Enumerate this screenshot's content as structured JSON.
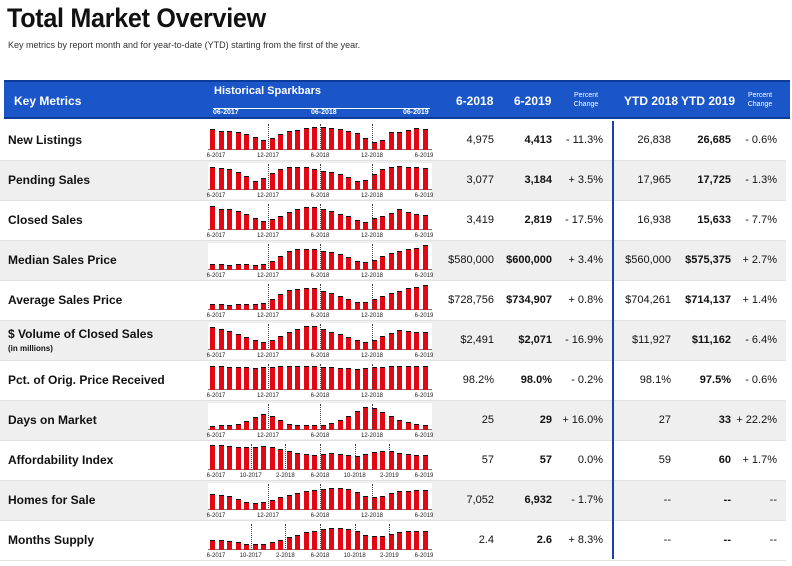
{
  "title": "Total Market Overview",
  "subtitle": "Key metrics by report month and for year-to-date (YTD) starting from the first of the year.",
  "header": {
    "key_metrics": "Key Metrics",
    "sparkbars": "Historical Sparkbars",
    "spark_dates": [
      "06-2017",
      "06-2018",
      "06-2019"
    ],
    "col_6_2018": "6-2018",
    "col_6_2019": "6-2019",
    "percent_change": "Percent Change",
    "ytd_2018": "YTD 2018",
    "ytd_2019": "YTD 2019"
  },
  "colors": {
    "header_bg": "#1a56c8",
    "bar": "#e30613",
    "divider": "#1a3fb0"
  },
  "rows": [
    {
      "metric": "New Listings",
      "sub": "",
      "v2018": "4,975",
      "v2019": "4,413",
      "pct": "- 11.3%",
      "ytd2018": "26,838",
      "ytd2019": "26,685",
      "ytdpct": "- 0.6%",
      "tick_labels": [
        "6-2017",
        "12-2017",
        "6-2018",
        "12-2018",
        "6-2019"
      ],
      "spark": [
        0.8,
        0.75,
        0.72,
        0.7,
        0.62,
        0.5,
        0.4,
        0.45,
        0.6,
        0.72,
        0.78,
        0.85,
        0.88,
        0.88,
        0.85,
        0.82,
        0.75,
        0.65,
        0.45,
        0.3,
        0.4,
        0.68,
        0.7,
        0.78,
        0.85,
        0.8
      ]
    },
    {
      "metric": "Pending Sales",
      "sub": "",
      "v2018": "3,077",
      "v2019": "3,184",
      "pct": "+ 3.5%",
      "ytd2018": "17,965",
      "ytd2019": "17,725",
      "ytdpct": "- 1.3%",
      "tick_labels": [
        "6-2017",
        "12-2017",
        "6-2018",
        "12-2018",
        "6-2019"
      ],
      "spark": [
        0.88,
        0.85,
        0.8,
        0.7,
        0.55,
        0.35,
        0.45,
        0.65,
        0.82,
        0.9,
        0.9,
        0.88,
        0.82,
        0.72,
        0.7,
        0.62,
        0.5,
        0.35,
        0.4,
        0.6,
        0.8,
        0.9,
        0.92,
        0.9,
        0.88,
        0.86
      ]
    },
    {
      "metric": "Closed Sales",
      "sub": "",
      "v2018": "3,419",
      "v2019": "2,819",
      "pct": "- 17.5%",
      "ytd2018": "16,938",
      "ytd2019": "15,633",
      "ytdpct": "- 7.7%",
      "tick_labels": [
        "6-2017",
        "12-2017",
        "6-2018",
        "12-2018",
        "6-2019"
      ],
      "spark": [
        0.92,
        0.82,
        0.8,
        0.72,
        0.6,
        0.48,
        0.35,
        0.42,
        0.55,
        0.7,
        0.8,
        0.9,
        0.9,
        0.82,
        0.72,
        0.62,
        0.52,
        0.4,
        0.3,
        0.45,
        0.55,
        0.65,
        0.8,
        0.7,
        0.6,
        0.58
      ]
    },
    {
      "metric": "Median Sales Price",
      "sub": "",
      "v2018": "$580,000",
      "v2019": "$600,000",
      "pct": "+ 3.4%",
      "ytd2018": "$560,000",
      "ytd2019": "$575,375",
      "ytdpct": "+ 2.7%",
      "tick_labels": [
        "6-2017",
        "12-2017",
        "6-2018",
        "12-2018",
        "6-2019"
      ],
      "spark": [
        0.25,
        0.22,
        0.2,
        0.22,
        0.25,
        0.2,
        0.22,
        0.35,
        0.55,
        0.75,
        0.8,
        0.82,
        0.8,
        0.72,
        0.7,
        0.62,
        0.5,
        0.35,
        0.3,
        0.4,
        0.52,
        0.65,
        0.75,
        0.8,
        0.85,
        0.95
      ]
    },
    {
      "metric": "Average Sales Price",
      "sub": "",
      "v2018": "$728,756",
      "v2019": "$734,907",
      "pct": "+ 0.8%",
      "ytd2018": "$704,261",
      "ytd2019": "$714,137",
      "ytdpct": "+ 1.4%",
      "tick_labels": [
        "6-2017",
        "12-2017",
        "6-2018",
        "12-2018",
        "6-2019"
      ],
      "spark": [
        0.25,
        0.22,
        0.2,
        0.22,
        0.22,
        0.22,
        0.28,
        0.42,
        0.62,
        0.78,
        0.82,
        0.85,
        0.85,
        0.72,
        0.65,
        0.55,
        0.42,
        0.3,
        0.3,
        0.42,
        0.55,
        0.65,
        0.75,
        0.85,
        0.9,
        0.95
      ]
    },
    {
      "metric": "$ Volume of Closed Sales",
      "sub": "(in millions)",
      "v2018": "$2,491",
      "v2019": "$2,071",
      "pct": "- 16.9%",
      "ytd2018": "$11,927",
      "ytd2019": "$11,162",
      "ytdpct": "- 6.4%",
      "tick_labels": [
        "6-2017",
        "12-2017",
        "6-2018",
        "12-2018",
        "6-2019"
      ],
      "spark": [
        0.88,
        0.8,
        0.72,
        0.6,
        0.5,
        0.4,
        0.32,
        0.4,
        0.55,
        0.7,
        0.8,
        0.92,
        0.92,
        0.8,
        0.7,
        0.6,
        0.5,
        0.38,
        0.3,
        0.4,
        0.52,
        0.65,
        0.78,
        0.75,
        0.7,
        0.68
      ]
    },
    {
      "metric": "Pct. of Orig. Price Received",
      "sub": "",
      "v2018": "98.2%",
      "v2019": "98.0%",
      "pct": "- 0.2%",
      "ytd2018": "98.1%",
      "ytd2019": "97.5%",
      "ytdpct": "- 0.6%",
      "tick_labels": [
        "6-2017",
        "12-2017",
        "6-2018",
        "12-2018",
        "6-2019"
      ],
      "spark": [
        0.92,
        0.92,
        0.9,
        0.88,
        0.88,
        0.86,
        0.88,
        0.9,
        0.92,
        0.94,
        0.94,
        0.94,
        0.92,
        0.9,
        0.88,
        0.86,
        0.84,
        0.82,
        0.84,
        0.88,
        0.9,
        0.92,
        0.94,
        0.94,
        0.93,
        0.92
      ]
    },
    {
      "metric": "Days on Market",
      "sub": "",
      "v2018": "25",
      "v2019": "29",
      "pct": "+ 16.0%",
      "ytd2018": "27",
      "ytd2019": "33",
      "ytdpct": "+ 22.2%",
      "tick_labels": [
        "6-2017",
        "12-2017",
        "6-2018",
        "12-2018",
        "6-2019"
      ],
      "spark": [
        0.15,
        0.18,
        0.2,
        0.25,
        0.35,
        0.5,
        0.62,
        0.55,
        0.38,
        0.25,
        0.2,
        0.18,
        0.18,
        0.2,
        0.28,
        0.38,
        0.55,
        0.75,
        0.9,
        0.85,
        0.7,
        0.55,
        0.4,
        0.3,
        0.22,
        0.2
      ]
    },
    {
      "metric": "Affordability Index",
      "sub": "",
      "v2018": "57",
      "v2019": "57",
      "pct": "0.0%",
      "ytd2018": "59",
      "ytd2019": "60",
      "ytdpct": "+ 1.7%",
      "tick_labels": [
        "6-2017",
        "10-2017",
        "2-2018",
        "6-2018",
        "10-2018",
        "2-2019",
        "6-2019"
      ],
      "spark": [
        0.95,
        0.95,
        0.92,
        0.9,
        0.9,
        0.88,
        0.92,
        0.9,
        0.8,
        0.72,
        0.65,
        0.6,
        0.58,
        0.6,
        0.65,
        0.6,
        0.58,
        0.55,
        0.62,
        0.7,
        0.75,
        0.72,
        0.65,
        0.62,
        0.58,
        0.56
      ]
    },
    {
      "metric": "Homes for Sale",
      "sub": "",
      "v2018": "7,052",
      "v2019": "6,932",
      "pct": "- 1.7%",
      "ytd2018": "--",
      "ytd2019": "--",
      "ytdpct": "--",
      "tick_labels": [
        "6-2017",
        "12-2017",
        "6-2018",
        "12-2018",
        "6-2019"
      ],
      "spark": [
        0.6,
        0.58,
        0.52,
        0.42,
        0.32,
        0.28,
        0.3,
        0.38,
        0.5,
        0.58,
        0.65,
        0.72,
        0.78,
        0.82,
        0.85,
        0.85,
        0.8,
        0.7,
        0.55,
        0.5,
        0.55,
        0.65,
        0.72,
        0.75,
        0.76,
        0.76
      ]
    },
    {
      "metric": "Months Supply",
      "sub": "",
      "v2018": "2.4",
      "v2019": "2.6",
      "pct": "+ 8.3%",
      "ytd2018": "--",
      "ytd2019": "--",
      "ytdpct": "--",
      "tick_labels": [
        "6-2017",
        "10-2017",
        "2-2018",
        "6-2018",
        "10-2018",
        "2-2019",
        "6-2019"
      ],
      "spark": [
        0.4,
        0.38,
        0.35,
        0.3,
        0.25,
        0.22,
        0.25,
        0.3,
        0.4,
        0.5,
        0.58,
        0.68,
        0.75,
        0.82,
        0.85,
        0.85,
        0.8,
        0.72,
        0.58,
        0.52,
        0.55,
        0.62,
        0.7,
        0.72,
        0.74,
        0.74
      ]
    }
  ]
}
